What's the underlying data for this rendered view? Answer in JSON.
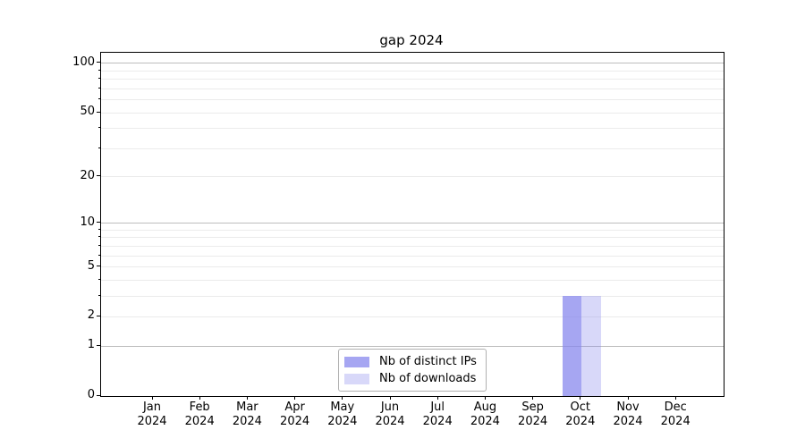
{
  "chart_data": {
    "type": "bar",
    "title": "gap 2024",
    "xlabel": "",
    "ylabel": "",
    "y_scale": "log1p",
    "ylim": [
      0,
      116
    ],
    "y_tick_labels": [
      0,
      1,
      2,
      5,
      10,
      20,
      50,
      100
    ],
    "y_major_gridlines": [
      1,
      10,
      100
    ],
    "y_minor_gridlines": [
      2,
      3,
      4,
      5,
      6,
      7,
      8,
      9,
      20,
      30,
      40,
      50,
      60,
      70,
      80,
      90
    ],
    "y_minor_unlabeled_ticks": [
      3,
      4,
      6,
      7,
      8,
      9,
      30,
      40,
      60,
      70,
      80,
      90
    ],
    "grid": "horizontal-only",
    "categories": [
      "Jan",
      "Feb",
      "Mar",
      "Apr",
      "May",
      "Jun",
      "Jul",
      "Aug",
      "Sep",
      "Oct",
      "Nov",
      "Dec"
    ],
    "category_year": "2024",
    "series": [
      {
        "name": "Nb of distinct IPs",
        "color": "rgba(136,136,238,0.75)",
        "values": [
          0,
          0,
          0,
          0,
          0,
          0,
          0,
          0,
          0,
          3,
          0,
          0
        ]
      },
      {
        "name": "Nb of downloads",
        "color": "rgba(136,136,238,0.33)",
        "values": [
          0,
          0,
          0,
          0,
          0,
          0,
          0,
          0,
          0,
          3,
          0,
          0
        ]
      }
    ],
    "legend_position": "lower center, inside axes",
    "spine_color": "#000000",
    "background_color": "#ffffff"
  }
}
